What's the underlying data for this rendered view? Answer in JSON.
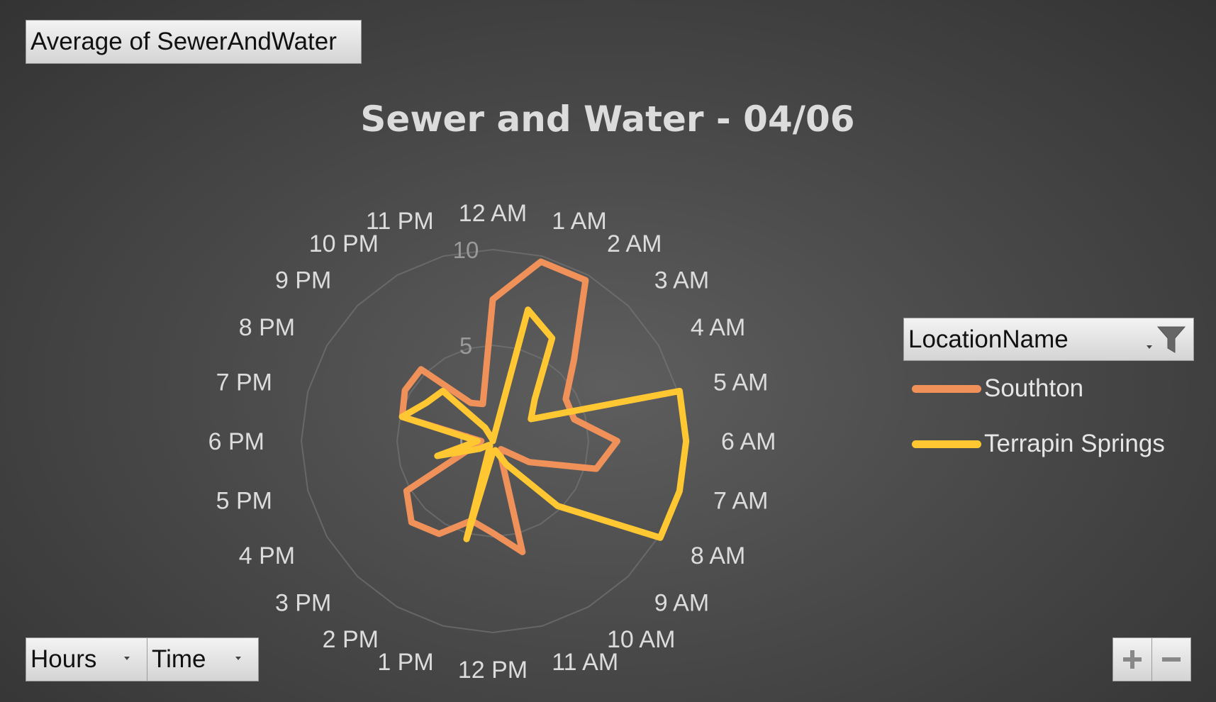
{
  "value_field": {
    "label": "Average  of SewerAndWater"
  },
  "axis_fields": [
    {
      "label": "Hours"
    },
    {
      "label": "Time"
    }
  ],
  "legend": {
    "header": "LocationName",
    "items": [
      {
        "label": "Southton",
        "color": "#f0915a"
      },
      {
        "label": "Terrapin Springs",
        "color": "#ffc832"
      }
    ]
  },
  "zoom": {
    "in_label": "+",
    "out_label": "−"
  },
  "colors": {
    "background": "#4a4a4a",
    "text": "#dcdcdc",
    "grid": "#7a7a7a"
  },
  "chart_data": {
    "type": "radar",
    "title": "Sewer and Water - 04/06",
    "categories": [
      "12 AM",
      "1 AM",
      "2 AM",
      "3 AM",
      "4 AM",
      "5 AM",
      "6 AM",
      "7 AM",
      "8 AM",
      "9 AM",
      "10 AM",
      "11 AM",
      "12 PM",
      "1 PM",
      "2 PM",
      "3 PM",
      "4 PM",
      "5 PM",
      "6 PM",
      "7 PM",
      "8 PM",
      "9 PM",
      "10 PM",
      "11 PM"
    ],
    "radial_ticks": [
      "0",
      "5",
      "10"
    ],
    "radial_range": [
      0,
      10
    ],
    "grid": true,
    "legend_position": "right",
    "series": [
      {
        "name": "Southton",
        "color": "#f0915a",
        "values": [
          7.4,
          9.7,
          9.7,
          6.0,
          4.4,
          4.4,
          6.5,
          5.6,
          2.2,
          0.6,
          0.8,
          6.0,
          4.8,
          4.3,
          5.6,
          6.0,
          5.2,
          1.0,
          0.6,
          4.9,
          5.3,
          5.3,
          2.3,
          2.0
        ]
      },
      {
        "name": "Terrapin Springs",
        "color": "#ffc832",
        "values": [
          0.0,
          7.1,
          6.2,
          3.1,
          2.3,
          10.1,
          10.1,
          10.1,
          10.1,
          4.8,
          1.4,
          0.5,
          0.6,
          5.3,
          0.3,
          0.3,
          0.8,
          3.0,
          0.8,
          4.9,
          4.0,
          3.7,
          0.8,
          0.1
        ]
      }
    ]
  }
}
